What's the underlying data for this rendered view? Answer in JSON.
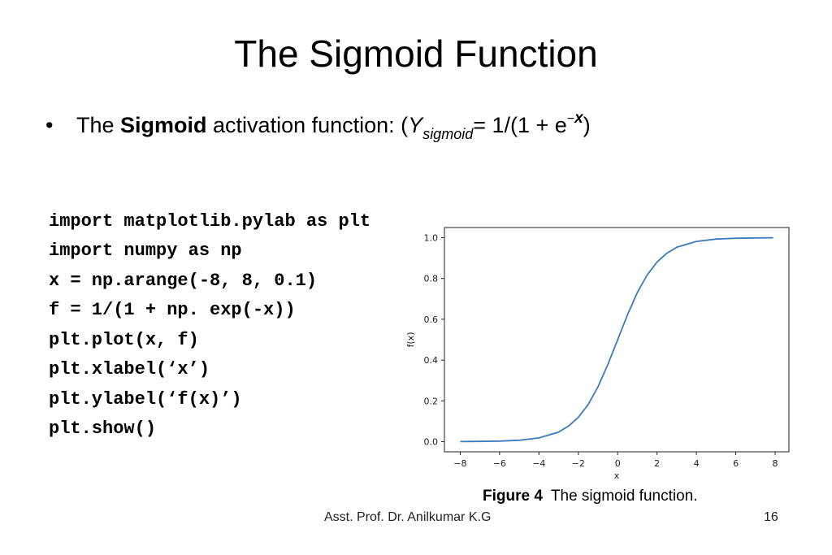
{
  "slide": {
    "title": "The Sigmoid Function",
    "bullet": {
      "marker": "•",
      "prefix": "The ",
      "bold": "Sigmoid",
      "middle": " activation function: (",
      "y_var": "Y",
      "y_subscript": "sigmoid",
      "equals_text": "= 1/(1 + e",
      "exp_sign": "−",
      "exp_var": "x",
      "close": ")"
    },
    "code_lines": [
      "import matplotlib.pylab as plt",
      "import numpy as np",
      "x = np.arange(-8, 8, 0.1)",
      "f = 1/(1 + np. exp(-x))",
      "plt.plot(x, f)",
      "plt.xlabel(‘x’)",
      "plt.ylabel(‘f(x)’)",
      "plt.show()"
    ],
    "caption": {
      "label": "Figure 4",
      "text": "The sigmoid function."
    },
    "footer": {
      "author": "Asst. Prof. Dr. Anilkumar K.G",
      "page": "16"
    }
  },
  "chart_data": {
    "type": "line",
    "title": "",
    "xlabel": "x",
    "ylabel": "f(x)",
    "xlim": [
      -8.8,
      8.7
    ],
    "ylim": [
      -0.05,
      1.05
    ],
    "x_ticks": [
      -8,
      -6,
      -4,
      -2,
      0,
      2,
      4,
      6,
      8
    ],
    "x_tick_labels": [
      "−8",
      "−6",
      "−4",
      "−2",
      "0",
      "2",
      "4",
      "6",
      "8"
    ],
    "y_ticks": [
      0.0,
      0.2,
      0.4,
      0.6,
      0.8,
      1.0
    ],
    "y_tick_labels": [
      "0.0",
      "0.2",
      "0.4",
      "0.6",
      "0.8",
      "1.0"
    ],
    "grid": false,
    "series": [
      {
        "color": "#3b7bbf",
        "x": [
          -8,
          -7,
          -6,
          -5,
          -4,
          -3,
          -2.5,
          -2,
          -1.5,
          -1,
          -0.5,
          0,
          0.5,
          1,
          1.5,
          2,
          2.5,
          3,
          4,
          5,
          6,
          7,
          7.9
        ],
        "values": [
          0.0003,
          0.0009,
          0.0025,
          0.0067,
          0.018,
          0.047,
          0.076,
          0.119,
          0.182,
          0.269,
          0.378,
          0.5,
          0.622,
          0.731,
          0.818,
          0.881,
          0.924,
          0.953,
          0.982,
          0.9933,
          0.9975,
          0.9991,
          0.9996
        ]
      }
    ]
  }
}
